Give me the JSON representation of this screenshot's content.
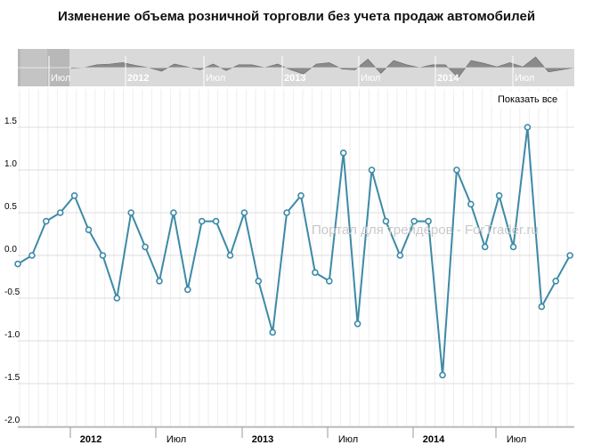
{
  "title": "Изменение объема розничной торговли без учета продаж автомобилей",
  "watermark": "Портал для трейдеров - ForTrader.ru",
  "show_all_label": "Показать все",
  "colors": {
    "line": "#3d8aa6",
    "navigator_bg": "#d9d9d9",
    "navigator_fill": "#8a8a8a",
    "navigator_mask": "#b8b8b8",
    "grid": "#dcdcdc"
  },
  "navigator": {
    "labels": [
      "Июл",
      "2012",
      "Июл",
      "2013",
      "Июл",
      "2014",
      "Июл"
    ]
  },
  "chart_data": {
    "type": "line",
    "x_tick_labels": [
      "2012",
      "Июл",
      "2013",
      "Июл",
      "2014",
      "Июл"
    ],
    "y_tick_labels": [
      "1.5",
      "1.0",
      "0.5",
      "0.0",
      "-0.5",
      "-1.0",
      "-1.5",
      "-2.0"
    ],
    "ylim": [
      -2.0,
      2.0
    ],
    "grid": true,
    "series": [
      {
        "values": [
          -0.1,
          0.0,
          0.4,
          0.5,
          0.7,
          0.3,
          0.0,
          -0.5,
          0.5,
          0.1,
          -0.3,
          0.5,
          -0.4,
          0.4,
          0.4,
          0.0,
          0.5,
          -0.3,
          -0.9,
          0.5,
          0.7,
          -0.2,
          -0.3,
          1.2,
          -0.8,
          1.0,
          0.4,
          0.0,
          0.4,
          0.4,
          -1.4,
          1.0,
          0.6,
          0.1,
          0.7,
          0.1,
          1.5,
          -0.6,
          -0.3,
          0.0
        ]
      }
    ]
  }
}
